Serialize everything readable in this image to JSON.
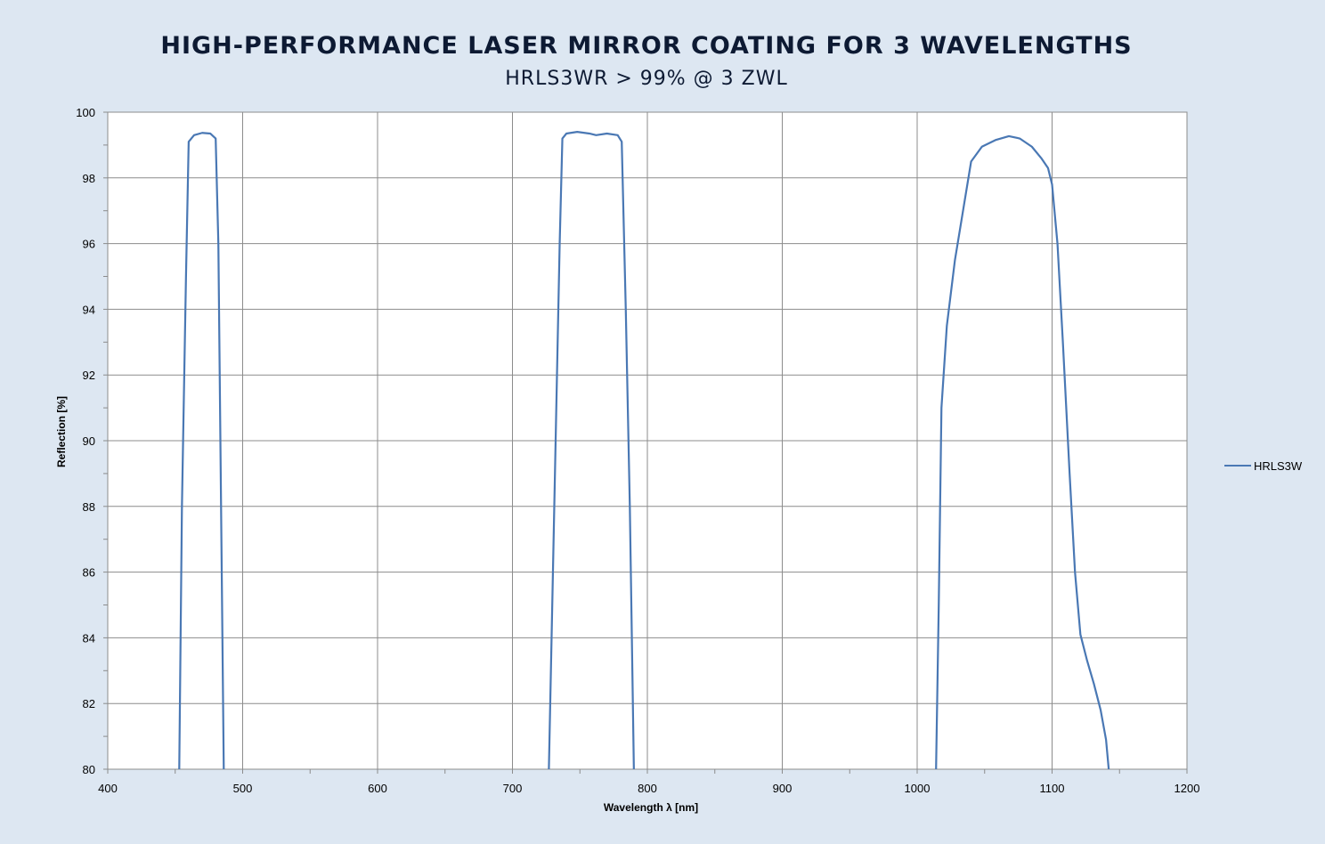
{
  "chart_data": {
    "type": "line",
    "title": "HIGH-PERFORMANCE LASER MIRROR COATING FOR 3 WAVELENGTHS",
    "subtitle": "HRLS3WR > 99% @ 3 ZWL",
    "xlabel": "Wavelength λ [nm]",
    "ylabel": "Reflection [%]",
    "xlim": [
      400,
      1200
    ],
    "ylim": [
      80,
      100
    ],
    "xticks": [
      400,
      500,
      600,
      700,
      800,
      900,
      1000,
      1100,
      1200
    ],
    "yticks": [
      80,
      82,
      84,
      86,
      88,
      90,
      92,
      94,
      96,
      98,
      100
    ],
    "grid": true,
    "legend_position": "right",
    "series": [
      {
        "name": "HRLS3W",
        "color": "#4a78b4",
        "segments": [
          [
            [
              453,
              80
            ],
            [
              455,
              88
            ],
            [
              458,
              95
            ],
            [
              460,
              99.1
            ],
            [
              464,
              99.3
            ],
            [
              470,
              99.37
            ],
            [
              476,
              99.35
            ],
            [
              480,
              99.2
            ],
            [
              482,
              96
            ],
            [
              484,
              88
            ],
            [
              486,
              80
            ]
          ],
          [
            [
              727,
              80
            ],
            [
              731,
              88
            ],
            [
              735,
              96
            ],
            [
              737,
              99.2
            ],
            [
              740,
              99.35
            ],
            [
              748,
              99.4
            ],
            [
              757,
              99.35
            ],
            [
              762,
              99.3
            ],
            [
              770,
              99.35
            ],
            [
              778,
              99.3
            ],
            [
              781,
              99.1
            ],
            [
              784,
              94
            ],
            [
              787,
              88
            ],
            [
              790,
              80
            ]
          ],
          [
            [
              1014,
              80
            ],
            [
              1016,
              85
            ],
            [
              1018,
              91
            ],
            [
              1022,
              93.5
            ],
            [
              1028,
              95.5
            ],
            [
              1034,
              97
            ],
            [
              1040,
              98.5
            ],
            [
              1048,
              98.95
            ],
            [
              1058,
              99.15
            ],
            [
              1068,
              99.27
            ],
            [
              1076,
              99.2
            ],
            [
              1085,
              98.95
            ],
            [
              1092,
              98.6
            ],
            [
              1097,
              98.3
            ],
            [
              1100,
              97.8
            ],
            [
              1104,
              96
            ],
            [
              1108,
              93
            ],
            [
              1113,
              89
            ],
            [
              1117,
              86
            ],
            [
              1121,
              84.1
            ],
            [
              1126,
              83.3
            ],
            [
              1131,
              82.6
            ],
            [
              1136,
              81.8
            ],
            [
              1140,
              80.9
            ],
            [
              1142,
              80
            ]
          ]
        ]
      }
    ]
  }
}
